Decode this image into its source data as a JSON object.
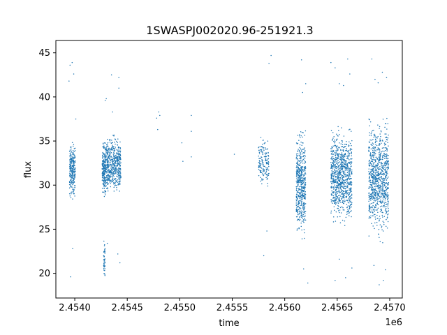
{
  "chart_data": {
    "type": "scatter",
    "title": "1SWASPJ002020.96-251921.3",
    "xlabel": "time",
    "ylabel": "flux",
    "offset_text": "1e6",
    "xlim": [
      2453820,
      2457120
    ],
    "ylim": [
      17.2,
      46.4
    ],
    "xticks": [
      2454000,
      2454500,
      2455000,
      2455500,
      2456000,
      2456500,
      2457000
    ],
    "xtick_labels": [
      "2.4540",
      "2.4545",
      "2.4550",
      "2.4555",
      "2.4560",
      "2.4565",
      "2.4570"
    ],
    "yticks": [
      20,
      25,
      30,
      35,
      40,
      45
    ],
    "ytick_labels": [
      "20",
      "25",
      "30",
      "35",
      "40",
      "45"
    ],
    "grid": false,
    "marker_color": "#1f77b4",
    "series": [
      {
        "clusters": [
          {
            "x": [
              2453950,
              2454005
            ],
            "y": [
              27.8,
              35.6
            ],
            "n": 260
          },
          {
            "x": [
              2454260,
              2454300
            ],
            "y": [
              28.2,
              35.6
            ],
            "n": 220
          },
          {
            "x": [
              2454300,
              2454440
            ],
            "y": [
              28.2,
              36.2
            ],
            "n": 520
          },
          {
            "x": [
              2454275,
              2454290
            ],
            "y": [
              18.6,
              24.5
            ],
            "n": 45
          },
          {
            "x": [
              2455750,
              2455850
            ],
            "y": [
              28.8,
              36.5
            ],
            "n": 160
          },
          {
            "x": [
              2456110,
              2456200
            ],
            "y": [
              23.0,
              37.5
            ],
            "n": 520
          },
          {
            "x": [
              2456440,
              2456640
            ],
            "y": [
              24.5,
              37.5
            ],
            "n": 900
          },
          {
            "x": [
              2456800,
              2456990
            ],
            "y": [
              23.0,
              38.5
            ],
            "n": 900
          }
        ],
        "points": [
          [
            2453945,
            41.8
          ],
          [
            2453955,
            43.6
          ],
          [
            2453975,
            43.9
          ],
          [
            2453990,
            42.6
          ],
          [
            2453960,
            19.6
          ],
          [
            2453980,
            22.8
          ],
          [
            2454010,
            37.5
          ],
          [
            2454290,
            39.6
          ],
          [
            2454300,
            39.8
          ],
          [
            2454350,
            42.5
          ],
          [
            2454420,
            42.2
          ],
          [
            2454420,
            41.0
          ],
          [
            2454360,
            38.3
          ],
          [
            2454310,
            23.4
          ],
          [
            2454430,
            21.2
          ],
          [
            2454410,
            22.2
          ],
          [
            2454780,
            37.6
          ],
          [
            2454790,
            36.3
          ],
          [
            2454800,
            38.3
          ],
          [
            2454810,
            37.9
          ],
          [
            2455020,
            34.8
          ],
          [
            2455030,
            32.7
          ],
          [
            2455110,
            37.9
          ],
          [
            2455110,
            36.1
          ],
          [
            2455110,
            33.2
          ],
          [
            2455520,
            33.5
          ],
          [
            2455870,
            44.7
          ],
          [
            2455850,
            43.8
          ],
          [
            2455800,
            22.0
          ],
          [
            2455830,
            24.8
          ],
          [
            2456160,
            44.2
          ],
          [
            2456170,
            40.5
          ],
          [
            2456180,
            20.5
          ],
          [
            2456220,
            18.9
          ],
          [
            2456200,
            41.5
          ],
          [
            2456440,
            43.9
          ],
          [
            2456480,
            43.3
          ],
          [
            2456520,
            41.5
          ],
          [
            2456560,
            41.3
          ],
          [
            2456600,
            44.3
          ],
          [
            2456620,
            42.6
          ],
          [
            2456480,
            19.2
          ],
          [
            2456520,
            21.6
          ],
          [
            2456580,
            19.5
          ],
          [
            2456640,
            20.6
          ],
          [
            2456830,
            44.3
          ],
          [
            2456860,
            42.0
          ],
          [
            2456890,
            41.6
          ],
          [
            2456930,
            42.8
          ],
          [
            2456970,
            42.2
          ],
          [
            2456900,
            18.7
          ],
          [
            2456940,
            19.2
          ],
          [
            2456960,
            20.4
          ],
          [
            2456850,
            20.9
          ]
        ]
      }
    ]
  }
}
